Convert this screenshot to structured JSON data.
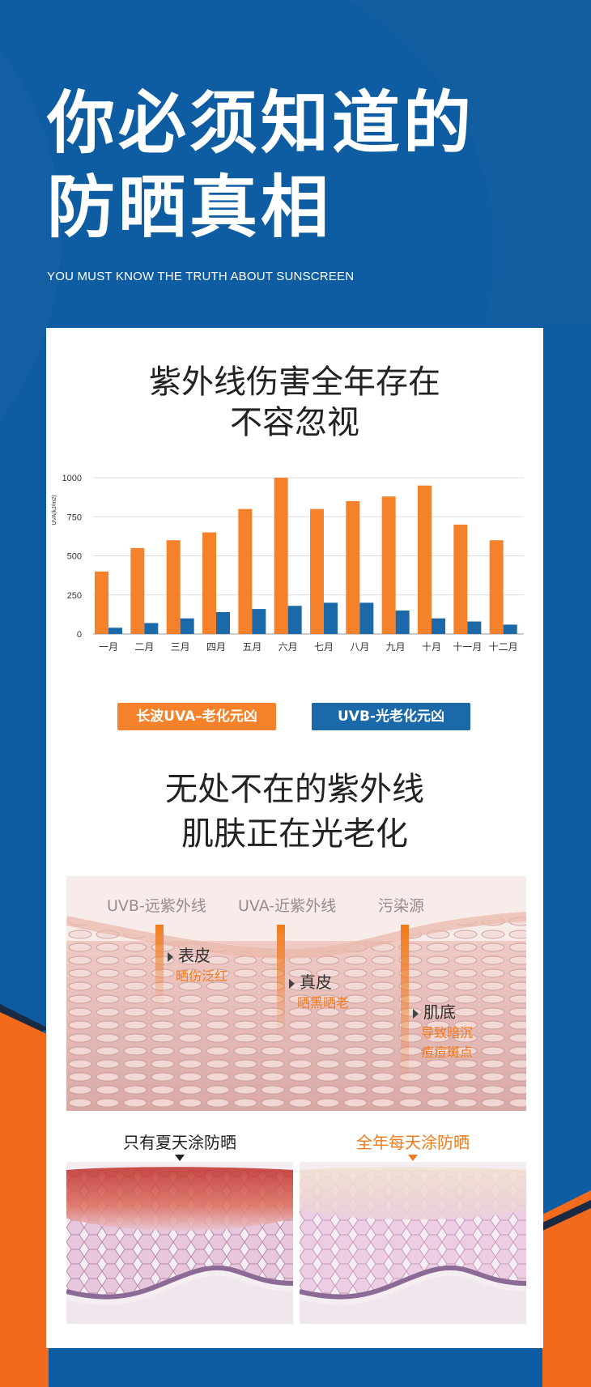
{
  "header": {
    "title_line1": "你必须知道的",
    "title_line2": "防晒真相",
    "subtitle": "YOU MUST KNOW THE TRUTH ABOUT SUNSCREEN"
  },
  "section1": {
    "title_line1": "紫外线伤害全年存在",
    "title_line2": "不容忽视"
  },
  "chart_data": {
    "type": "bar",
    "ylabel": "UVA(kJ/m2)",
    "ylim": [
      0,
      1000
    ],
    "yticks": [
      "1000",
      "750",
      "500",
      "250",
      "0"
    ],
    "categories": [
      "一月",
      "二月",
      "三月",
      "四月",
      "五月",
      "六月",
      "七月",
      "八月",
      "九月",
      "十月",
      "十一月",
      "十二月"
    ],
    "series": [
      {
        "name": "长波UVA–老化元凶",
        "color": "#f5822a",
        "values": [
          400,
          550,
          600,
          650,
          800,
          1000,
          800,
          850,
          880,
          950,
          700,
          600
        ]
      },
      {
        "name": "UVB-光老化元凶",
        "color": "#1b69a8",
        "values": [
          40,
          70,
          100,
          140,
          160,
          180,
          200,
          200,
          150,
          100,
          80,
          60
        ]
      }
    ],
    "grid": true,
    "legend_position": "bottom"
  },
  "section2": {
    "title_line1": "无处不在的紫外线",
    "title_line2": "肌肤正在光老化",
    "rays": [
      "UVB-远紫外线",
      "UVA-近紫外线",
      "污染源"
    ],
    "layers": [
      {
        "name": "表皮",
        "desc": [
          "晒伤泛红"
        ]
      },
      {
        "name": "真皮",
        "desc": [
          "晒黑晒老"
        ]
      },
      {
        "name": "肌底",
        "desc": [
          "导致暗沉",
          "痘痘斑点"
        ]
      }
    ]
  },
  "compare": {
    "left_label": "只有夏天涂防晒",
    "right_label": "全年每天涂防晒",
    "left_color": "#222222",
    "right_color": "#f07a1d"
  },
  "colors": {
    "background": "#0d5fa5",
    "accent_orange": "#f5822a",
    "accent_blue": "#1b69a8"
  }
}
